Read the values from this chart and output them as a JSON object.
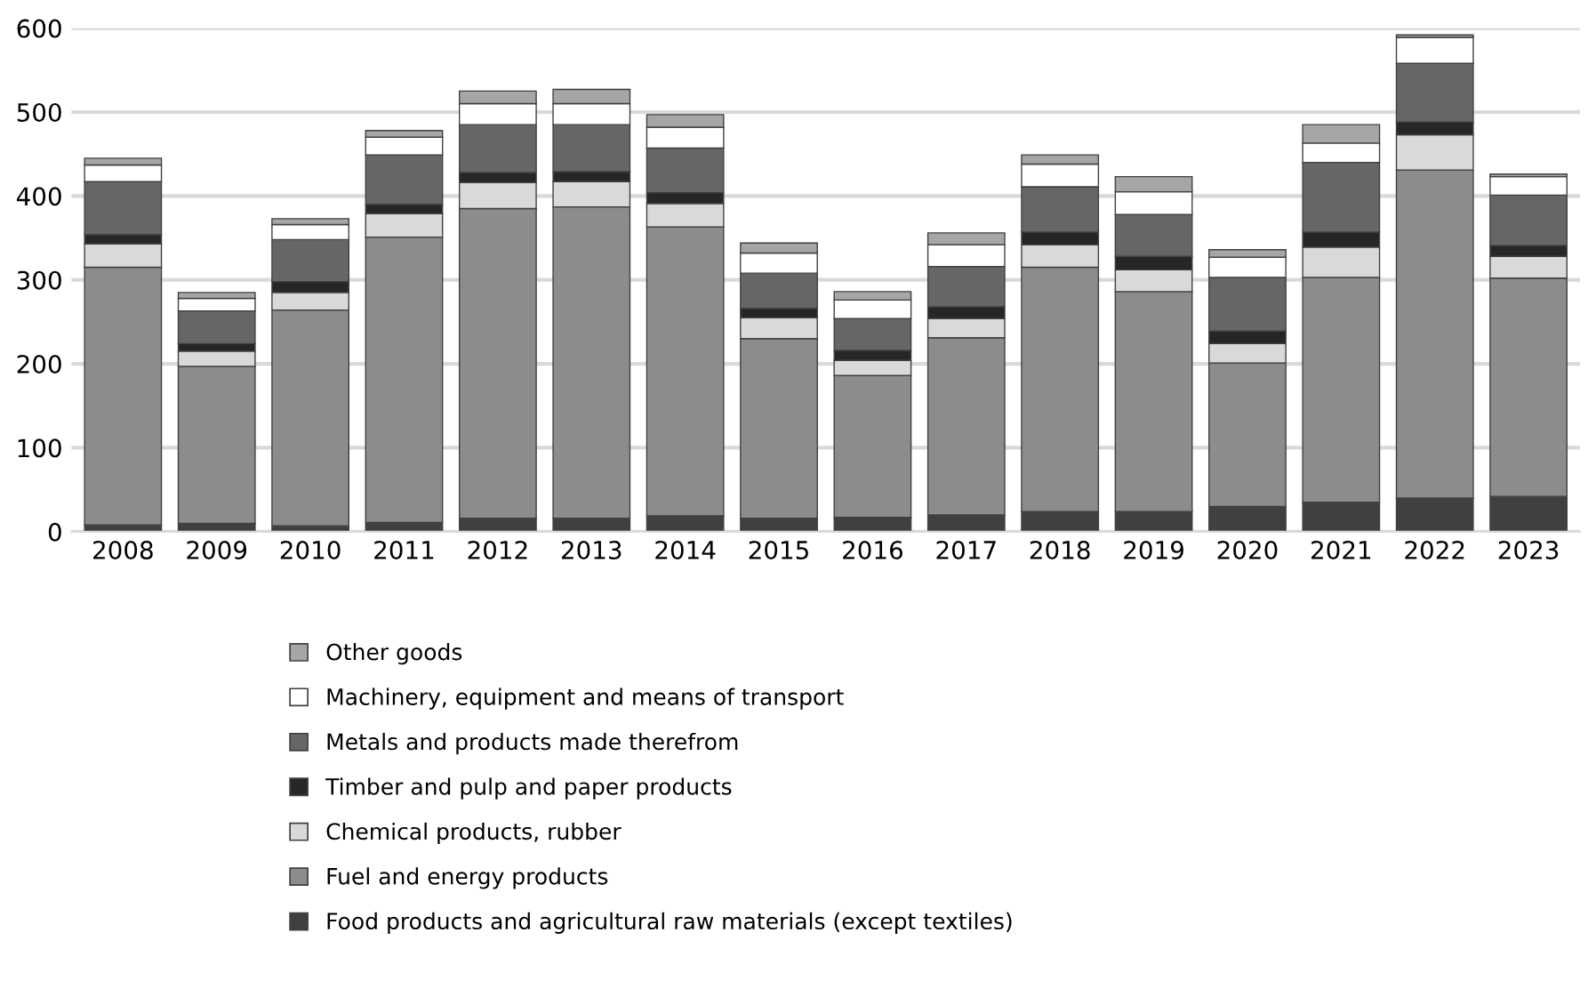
{
  "chart_data": {
    "type": "bar",
    "stacked": true,
    "categories": [
      "2008",
      "2009",
      "2010",
      "2011",
      "2012",
      "2013",
      "2014",
      "2015",
      "2016",
      "2017",
      "2018",
      "2019",
      "2020",
      "2021",
      "2022",
      "2023"
    ],
    "series": [
      {
        "name": "Food products and agricultural raw materials (except textiles)",
        "color": "#404040",
        "values": [
          8,
          10,
          7,
          11,
          16,
          16,
          19,
          16,
          17,
          20,
          24,
          24,
          30,
          35,
          40,
          42
        ]
      },
      {
        "name": "Fuel and energy products",
        "color": "#8c8c8c",
        "values": [
          307,
          187,
          257,
          340,
          369,
          371,
          344,
          214,
          169,
          211,
          291,
          262,
          171,
          268,
          391,
          260
        ]
      },
      {
        "name": "Chemical products, rubber",
        "color": "#d9d9d9",
        "values": [
          28,
          18,
          21,
          28,
          31,
          30,
          28,
          25,
          18,
          23,
          27,
          26,
          23,
          36,
          42,
          26
        ]
      },
      {
        "name": "Timber and pulp and paper products",
        "color": "#262626",
        "values": [
          11,
          9,
          13,
          11,
          12,
          12,
          13,
          11,
          12,
          14,
          15,
          16,
          15,
          18,
          15,
          13
        ]
      },
      {
        "name": "Metals and products made therefrom",
        "color": "#666666",
        "values": [
          63,
          39,
          50,
          59,
          57,
          56,
          53,
          42,
          38,
          48,
          54,
          50,
          64,
          83,
          70,
          60
        ]
      },
      {
        "name": "Machinery, equipment and means of transport",
        "color": "#ffffff",
        "values": [
          20,
          15,
          18,
          21,
          25,
          25,
          25,
          24,
          22,
          26,
          27,
          27,
          24,
          23,
          31,
          22
        ]
      },
      {
        "name": "Other goods",
        "color": "#a6a6a6",
        "values": [
          8,
          7,
          7,
          8,
          15,
          17,
          15,
          12,
          10,
          14,
          11,
          18,
          9,
          22,
          3,
          3
        ]
      }
    ],
    "ylim": [
      0,
      600
    ],
    "yticks": [
      0,
      100,
      200,
      300,
      400,
      500,
      600
    ],
    "grid": "y",
    "legend": "bottom"
  }
}
